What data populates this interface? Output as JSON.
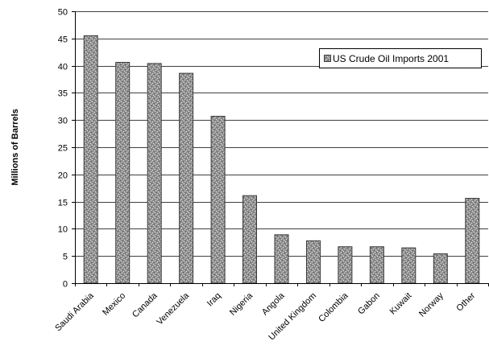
{
  "chart_data": {
    "type": "bar",
    "title": "",
    "xlabel": "",
    "ylabel": "Millions of Barrels",
    "ylim": [
      0,
      50
    ],
    "yticks": [
      0,
      5,
      10,
      15,
      20,
      25,
      30,
      35,
      40,
      45,
      50
    ],
    "grid": true,
    "legend_position": "top-right",
    "categories": [
      "Saudi Arabia",
      "Mexico",
      "Canada",
      "Venezuela",
      "Iraq",
      "Nigeria",
      "Angola",
      "United Kingdom",
      "Colombia",
      "Gabon",
      "Kuwait",
      "Norway",
      "Other"
    ],
    "series": [
      {
        "name": "US Crude Oil Imports 2001",
        "values": [
          45.5,
          40.6,
          40.4,
          38.6,
          30.7,
          16.1,
          8.9,
          7.8,
          6.7,
          6.7,
          6.5,
          5.4,
          15.6
        ],
        "color": "#9a9a9a",
        "pattern": "speckled"
      }
    ]
  },
  "colors": {
    "bar_fill": "#9a9a9a",
    "bar_stroke": "#3a3a3a",
    "grid": "#000000",
    "axis": "#000000"
  }
}
